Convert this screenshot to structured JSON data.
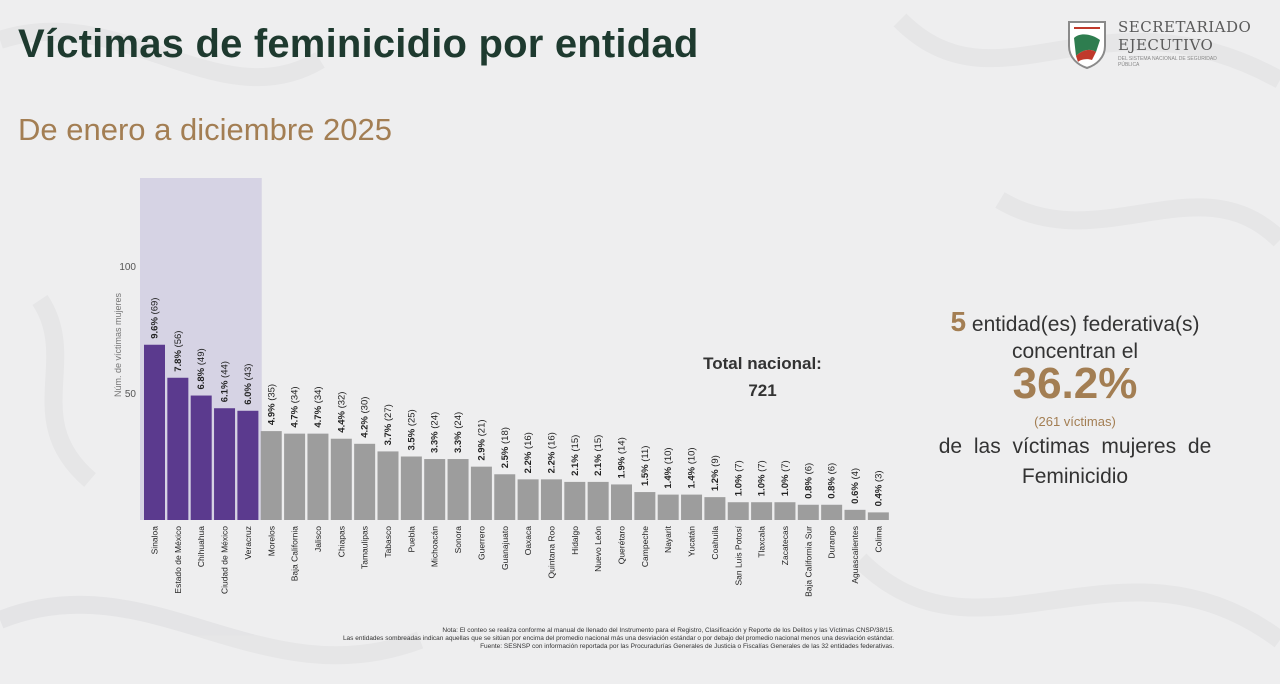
{
  "header": {
    "title": "Víctimas de feminicidio por entidad",
    "subtitle": "De enero a diciembre 2025"
  },
  "logo": {
    "line1": "SECRETARIADO",
    "line2": "EJECUTIVO",
    "line3": "DEL SISTEMA NACIONAL DE SEGURIDAD PÚBLICA",
    "icon": "shield-emblem-icon"
  },
  "total": {
    "label": "Total nacional:",
    "value": "721"
  },
  "summary": {
    "count": "5",
    "line1_text": "entidad(es) federativa(s)",
    "line2": "concentran el",
    "percent": "36.2%",
    "victims": "(261 víctimas)",
    "line3": "de las víctimas mujeres de",
    "line4": "Feminicidio"
  },
  "notes": {
    "line1": "Nota: El conteo se realiza conforme al manual de llenado del Instrumento para el Registro, Clasificación y Reporte de los Delitos y las Víctimas CNSP/38/15.",
    "line2": "Las entidades sombreadas indican aquellas que se sitúan por encima del promedio nacional más una desviación estándar o por debajo del promedio nacional menos una desviación estándar.",
    "line3": "Fuente: SESNSP con información reportada por las Procuradurías Generales de Justicia o Fiscalías Generales de las 32 entidades federativas."
  },
  "colors": {
    "highlight_bar": "#5b3a8e",
    "normal_bar": "#9d9d9d",
    "highlight_band": "#d6d3e4",
    "accent": "#a37e53",
    "title": "#1e3a2f"
  },
  "chart_data": {
    "type": "bar",
    "ylabel": "Núm. de víctimas mujeres",
    "ylim": [
      0,
      100
    ],
    "yticks": [
      "50",
      "100"
    ],
    "grid": false,
    "categories": [
      "Sinaloa",
      "Estado de México",
      "Chihuahua",
      "Ciudad de México",
      "Veracruz",
      "Morelos",
      "Baja California",
      "Jalisco",
      "Chiapas",
      "Tamaulipas",
      "Tabasco",
      "Puebla",
      "Michoacán",
      "Sonora",
      "Guerrero",
      "Guanajuato",
      "Oaxaca",
      "Quintana Roo",
      "Hidalgo",
      "Nuevo León",
      "Querétaro",
      "Campeche",
      "Nayarit",
      "Yucatán",
      "Coahuila",
      "San Luis Potosí",
      "Tlaxcala",
      "Zacatecas",
      "Baja California Sur",
      "Durango",
      "Aguascalientes",
      "Colima"
    ],
    "values": [
      69,
      56,
      49,
      44,
      43,
      35,
      34,
      34,
      32,
      30,
      27,
      25,
      24,
      24,
      21,
      18,
      16,
      16,
      15,
      15,
      14,
      11,
      10,
      10,
      9,
      7,
      7,
      7,
      6,
      6,
      4,
      3
    ],
    "percent_labels": [
      "9.6%",
      "7.8%",
      "6.8%",
      "6.1%",
      "6.0%",
      "4.9%",
      "4.7%",
      "4.7%",
      "4.4%",
      "4.2%",
      "3.7%",
      "3.5%",
      "3.3%",
      "3.3%",
      "2.9%",
      "2.5%",
      "2.2%",
      "2.2%",
      "2.1%",
      "2.1%",
      "1.9%",
      "1.5%",
      "1.4%",
      "1.4%",
      "1.2%",
      "1.0%",
      "1.0%",
      "1.0%",
      "0.8%",
      "0.8%",
      "0.6%",
      "0.4%"
    ],
    "count_labels": [
      "(69)",
      "(56)",
      "(49)",
      "(44)",
      "(43)",
      "(35)",
      "(34)",
      "(34)",
      "(32)",
      "(30)",
      "(27)",
      "(25)",
      "(24)",
      "(24)",
      "(21)",
      "(18)",
      "(16)",
      "(16)",
      "(15)",
      "(15)",
      "(14)",
      "(11)",
      "(10)",
      "(10)",
      "(9)",
      "(7)",
      "(7)",
      "(7)",
      "(6)",
      "(6)",
      "(4)",
      "(3)"
    ],
    "highlighted_count": 5
  }
}
